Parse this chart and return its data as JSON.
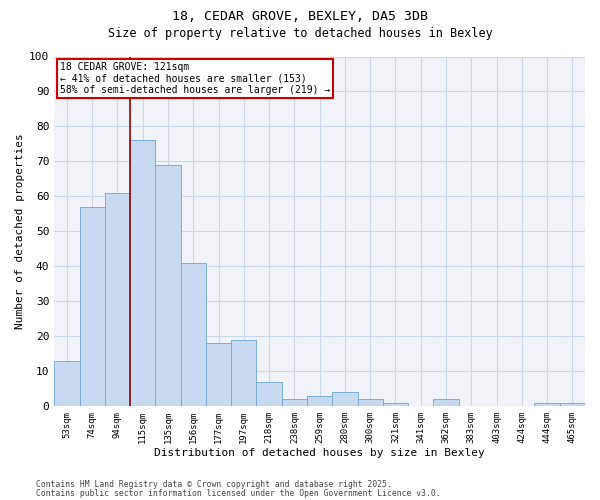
{
  "title_line1": "18, CEDAR GROVE, BEXLEY, DA5 3DB",
  "title_line2": "Size of property relative to detached houses in Bexley",
  "xlabel": "Distribution of detached houses by size in Bexley",
  "ylabel": "Number of detached properties",
  "footnote1": "Contains HM Land Registry data © Crown copyright and database right 2025.",
  "footnote2": "Contains public sector information licensed under the Open Government Licence v3.0.",
  "categories": [
    "53sqm",
    "74sqm",
    "94sqm",
    "115sqm",
    "135sqm",
    "156sqm",
    "177sqm",
    "197sqm",
    "218sqm",
    "238sqm",
    "259sqm",
    "280sqm",
    "300sqm",
    "321sqm",
    "341sqm",
    "362sqm",
    "383sqm",
    "403sqm",
    "424sqm",
    "444sqm",
    "465sqm"
  ],
  "values": [
    13,
    57,
    61,
    76,
    69,
    41,
    18,
    19,
    7,
    2,
    3,
    4,
    2,
    1,
    0,
    2,
    0,
    0,
    0,
    1,
    1
  ],
  "bar_color": "#c8daf0",
  "bar_edge_color": "#7aadd4",
  "grid_color": "#c8d8e8",
  "vline_x": 2.5,
  "vline_color": "#990000",
  "annotation_text": "18 CEDAR GROVE: 121sqm\n← 41% of detached houses are smaller (153)\n58% of semi-detached houses are larger (219) →",
  "annotation_box_color": "#cc0000",
  "ylim": [
    0,
    100
  ],
  "yticks": [
    0,
    10,
    20,
    30,
    40,
    50,
    60,
    70,
    80,
    90,
    100
  ],
  "bg_color": "#f0f4f8"
}
